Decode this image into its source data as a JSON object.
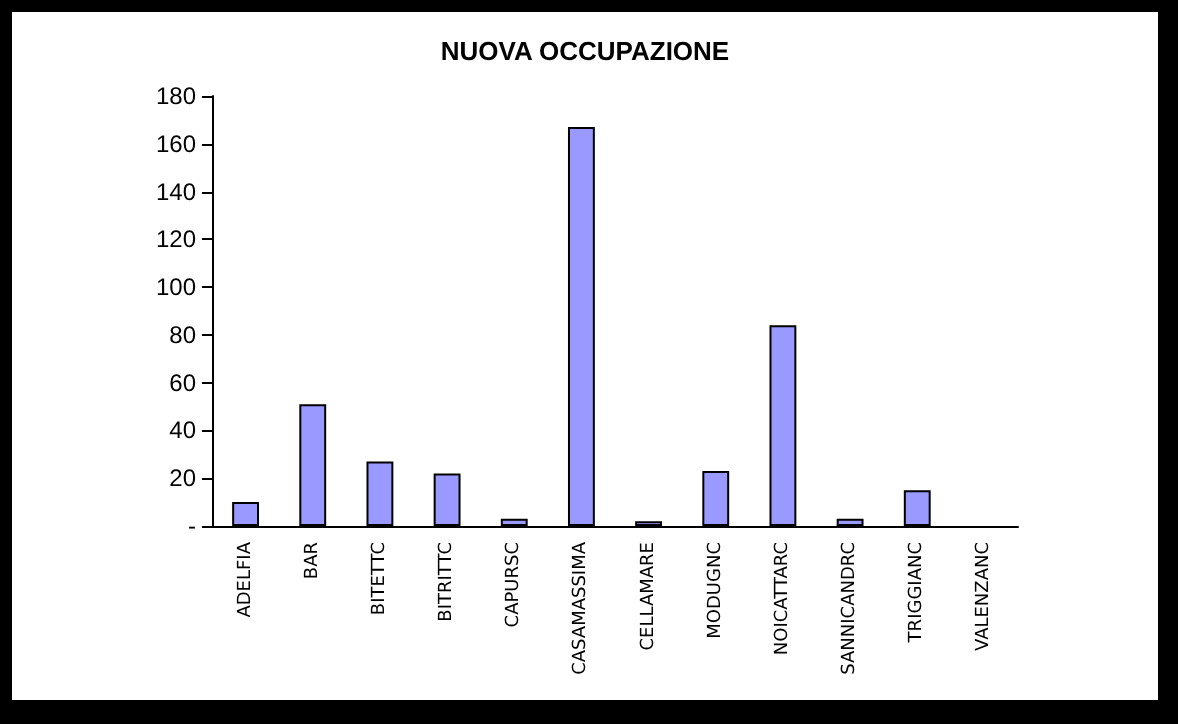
{
  "chart_data": {
    "type": "bar",
    "title": "NUOVA OCCUPAZIONE",
    "categories": [
      "ADELFIA",
      "BAR",
      "BITETTC",
      "BITRITTC",
      "CAPURSC",
      "CASAMASSIMA",
      "CELLAMARE",
      "MODUGNC",
      "NOICATTARC",
      "SANNICANDRC",
      "TRIGGIANC",
      "VALENZANC"
    ],
    "values": [
      10,
      51,
      27,
      22,
      3,
      167,
      2,
      23,
      84,
      3,
      15,
      0
    ],
    "color": "#9999ff",
    "ylim": [
      0,
      180
    ],
    "yticks": [
      {
        "value": 0,
        "label": "-"
      },
      20,
      40,
      60,
      80,
      100,
      120,
      140,
      160,
      180
    ],
    "grid": false
  }
}
